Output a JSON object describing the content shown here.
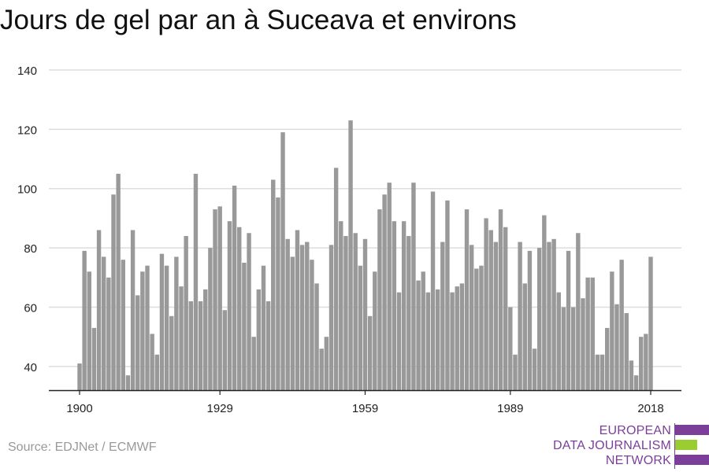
{
  "title": "Jours de gel par an à Suceava et environs",
  "source": "Source: EDJNet / ECMWF",
  "logo": {
    "lines": [
      "EUROPEAN",
      "DATA JOURNALISM",
      "NETWORK"
    ],
    "colors": {
      "purple": "#7b3f9a",
      "green": "#9acd32"
    }
  },
  "colors": {
    "bar": "#999999",
    "grid": "#dddddd",
    "axis": "#222222",
    "tick_label": "#222222"
  },
  "chart_data": {
    "type": "bar",
    "title": "Jours de gel par an à Suceava et environs",
    "xlabel": "",
    "ylabel": "",
    "ylim": [
      32,
      140
    ],
    "yticks": [
      40,
      60,
      80,
      100,
      120,
      140
    ],
    "xticks": [
      1900,
      1929,
      1959,
      1989,
      2018
    ],
    "grid": true,
    "x": [
      1900,
      1901,
      1902,
      1903,
      1904,
      1905,
      1906,
      1907,
      1908,
      1909,
      1910,
      1911,
      1912,
      1913,
      1914,
      1915,
      1916,
      1917,
      1918,
      1919,
      1920,
      1921,
      1922,
      1923,
      1924,
      1925,
      1926,
      1927,
      1928,
      1929,
      1930,
      1931,
      1932,
      1933,
      1934,
      1935,
      1936,
      1937,
      1938,
      1939,
      1940,
      1941,
      1942,
      1943,
      1944,
      1945,
      1946,
      1947,
      1948,
      1949,
      1950,
      1951,
      1952,
      1953,
      1954,
      1955,
      1956,
      1957,
      1958,
      1959,
      1960,
      1961,
      1962,
      1963,
      1964,
      1965,
      1966,
      1967,
      1968,
      1969,
      1970,
      1971,
      1972,
      1973,
      1974,
      1975,
      1976,
      1977,
      1978,
      1979,
      1980,
      1981,
      1982,
      1983,
      1984,
      1985,
      1986,
      1987,
      1988,
      1989,
      1990,
      1991,
      1992,
      1993,
      1994,
      1995,
      1996,
      1997,
      1998,
      1999,
      2000,
      2001,
      2002,
      2003,
      2004,
      2005,
      2006,
      2007,
      2008,
      2009,
      2010,
      2011,
      2012,
      2013,
      2014,
      2015,
      2016,
      2017,
      2018
    ],
    "values": [
      41,
      79,
      72,
      53,
      86,
      77,
      70,
      98,
      105,
      76,
      37,
      86,
      64,
      72,
      74,
      51,
      44,
      78,
      74,
      57,
      77,
      67,
      84,
      62,
      105,
      62,
      66,
      80,
      93,
      94,
      59,
      89,
      101,
      87,
      75,
      85,
      50,
      66,
      74,
      62,
      103,
      97,
      119,
      83,
      77,
      86,
      81,
      82,
      76,
      68,
      46,
      50,
      81,
      107,
      89,
      84,
      123,
      85,
      74,
      83,
      57,
      72,
      93,
      98,
      102,
      89,
      65,
      89,
      84,
      102,
      69,
      72,
      65,
      99,
      66,
      82,
      96,
      65,
      67,
      68,
      93,
      81,
      73,
      74,
      90,
      86,
      82,
      93,
      87,
      60,
      44,
      82,
      68,
      79,
      46,
      80,
      91,
      82,
      83,
      65,
      60,
      79,
      60,
      85,
      63,
      70,
      70,
      44,
      44,
      53,
      72,
      61,
      76,
      58,
      42,
      37,
      50,
      51,
      77
    ]
  }
}
